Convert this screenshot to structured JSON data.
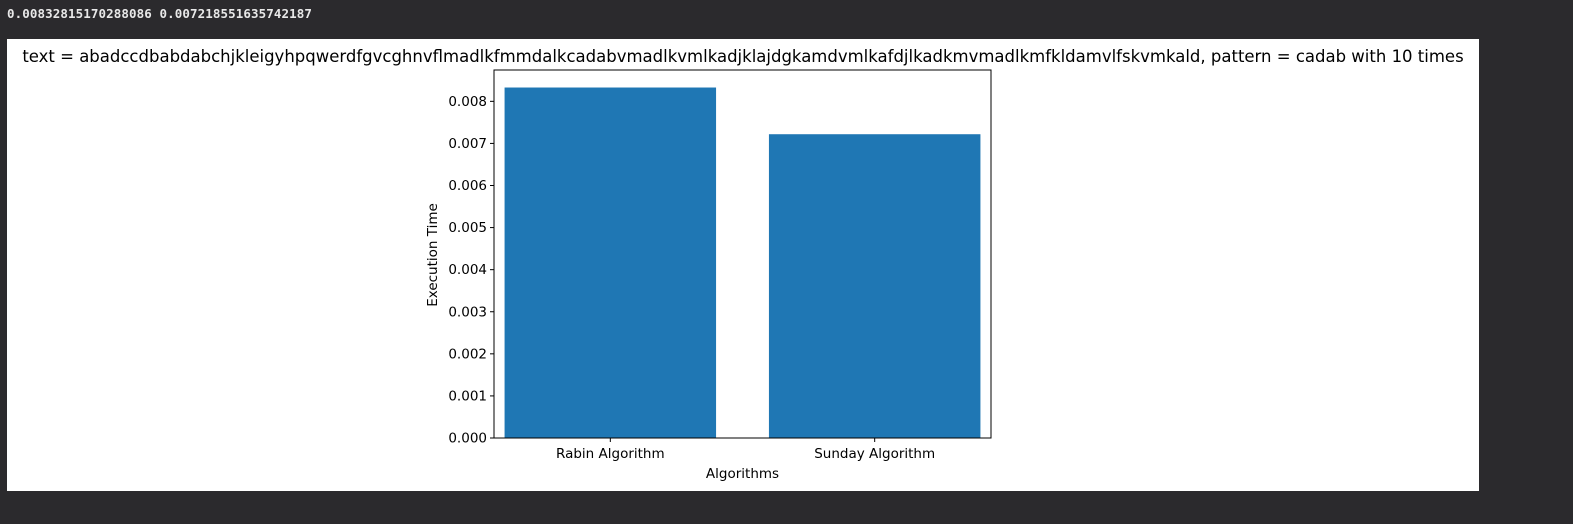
{
  "console": {
    "output": "0.00832815170288086 0.007218551635742187"
  },
  "colors": {
    "bar": "#1f77b4",
    "page_background": "#2b2a2d",
    "figure_background": "#ffffff"
  },
  "chart_data": {
    "type": "bar",
    "title": "text = abadccdbabdabchjkleigyhpqwerdfgvcghnvflmadlkfmmdalkcadabvmadlkvmlkadjklajdgkamdvmlkafdjlkadkmvmadlkmfkldamvlfskvmkald, pattern = cadab  with 10 times",
    "xlabel": "Algorithms",
    "ylabel": "Execution Time",
    "categories": [
      "Rabin Algorithm",
      "Sunday Algorithm"
    ],
    "values": [
      0.00832815170288086,
      0.007218551635742187
    ],
    "ylim": [
      0,
      0.00874456
    ],
    "yticks": [
      0.0,
      0.001,
      0.002,
      0.003,
      0.004,
      0.005,
      0.006,
      0.007,
      0.008
    ],
    "ytick_labels": [
      "0.000",
      "0.001",
      "0.002",
      "0.003",
      "0.004",
      "0.005",
      "0.006",
      "0.007",
      "0.008"
    ],
    "grid": false,
    "legend": "none"
  }
}
